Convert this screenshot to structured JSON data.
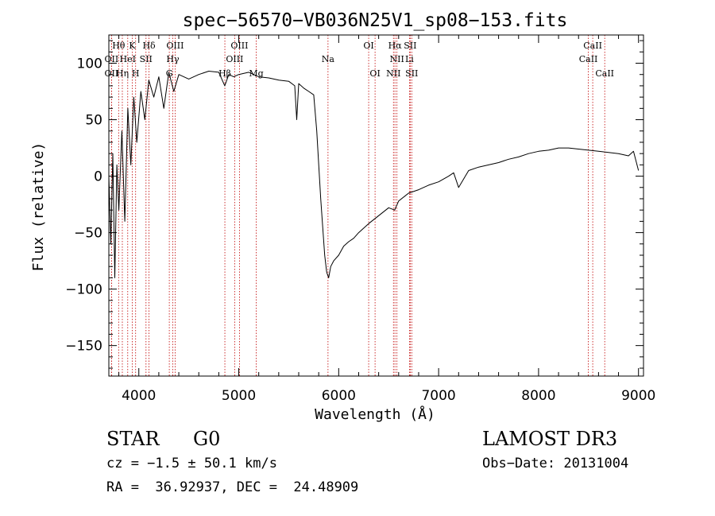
{
  "chart_data": {
    "type": "line",
    "title": "spec−56570−VB036N25V1_sp08−153.fits",
    "xlabel": "Wavelength (Å)",
    "ylabel": "Flux (relative)",
    "xlim": [
      3700,
      9050
    ],
    "ylim": [
      -177,
      125
    ],
    "xticks": [
      4000,
      5000,
      6000,
      7000,
      8000,
      9000
    ],
    "xtick_labels": [
      "4000",
      "5000",
      "6000",
      "7000",
      "8000",
      "9000"
    ],
    "yticks": [
      100,
      50,
      0,
      -50,
      -100,
      -150
    ],
    "ytick_labels": [
      "100",
      "50",
      "0",
      "−50",
      "−100",
      "−150"
    ],
    "series": [
      {
        "name": "spectrum",
        "x": [
          3700,
          3720,
          3740,
          3760,
          3780,
          3800,
          3830,
          3860,
          3890,
          3920,
          3950,
          3980,
          4020,
          4060,
          4100,
          4150,
          4200,
          4250,
          4300,
          4350,
          4400,
          4450,
          4500,
          4600,
          4700,
          4800,
          4860,
          4900,
          4950,
          5000,
          5100,
          5200,
          5300,
          5400,
          5500,
          5560,
          5580,
          5600,
          5650,
          5700,
          5750,
          5780,
          5800,
          5820,
          5840,
          5860,
          5880,
          5900,
          5920,
          5950,
          6000,
          6050,
          6100,
          6150,
          6200,
          6300,
          6400,
          6500,
          6560,
          6600,
          6700,
          6800,
          6900,
          7000,
          7100,
          7150,
          7200,
          7300,
          7400,
          7500,
          7600,
          7700,
          7800,
          7900,
          8000,
          8100,
          8200,
          8300,
          8400,
          8500,
          8600,
          8700,
          8800,
          8900,
          8950,
          9000
        ],
        "y": [
          0,
          -60,
          20,
          -90,
          10,
          -30,
          40,
          -40,
          60,
          10,
          70,
          30,
          75,
          50,
          85,
          70,
          88,
          60,
          92,
          75,
          90,
          88,
          86,
          90,
          93,
          92,
          80,
          90,
          88,
          90,
          92,
          88,
          87,
          85,
          84,
          80,
          50,
          82,
          78,
          75,
          72,
          40,
          10,
          -20,
          -45,
          -70,
          -85,
          -90,
          -80,
          -75,
          -70,
          -62,
          -58,
          -55,
          -50,
          -42,
          -35,
          -28,
          -30,
          -22,
          -15,
          -12,
          -8,
          -5,
          0,
          3,
          -10,
          5,
          8,
          10,
          12,
          15,
          17,
          20,
          22,
          23,
          25,
          25,
          24,
          23,
          22,
          21,
          20,
          18,
          22,
          5
        ]
      }
    ],
    "emission_lines": [
      {
        "label": "Hθ",
        "wavelength": 3798,
        "row": 1
      },
      {
        "label": "K",
        "wavelength": 3934,
        "row": 1
      },
      {
        "label": "Hδ",
        "wavelength": 4102,
        "row": 1
      },
      {
        "label": "OIII",
        "wavelength": 4363,
        "row": 1
      },
      {
        "label": "OIII",
        "wavelength": 5007,
        "row": 1
      },
      {
        "label": "OI",
        "wavelength": 6300,
        "row": 1
      },
      {
        "label": "Hα",
        "wavelength": 6563,
        "row": 1
      },
      {
        "label": "SII",
        "wavelength": 6716,
        "row": 1
      },
      {
        "label": "CaII",
        "wavelength": 8542,
        "row": 1
      },
      {
        "label": "OII",
        "wavelength": 3727,
        "row": 2
      },
      {
        "label": "HeI",
        "wavelength": 3889,
        "row": 2
      },
      {
        "label": "SII",
        "wavelength": 4072,
        "row": 2
      },
      {
        "label": "Hγ",
        "wavelength": 4340,
        "row": 2
      },
      {
        "label": "OIII",
        "wavelength": 4959,
        "row": 2
      },
      {
        "label": "Na",
        "wavelength": 5893,
        "row": 2
      },
      {
        "label": "NII",
        "wavelength": 6583,
        "row": 2
      },
      {
        "label": "Li",
        "wavelength": 6708,
        "row": 2
      },
      {
        "label": "CaII",
        "wavelength": 8498,
        "row": 2
      },
      {
        "label": "OII",
        "wavelength": 3727,
        "row": 3
      },
      {
        "label": "Hη",
        "wavelength": 3835,
        "row": 3
      },
      {
        "label": "H",
        "wavelength": 3968,
        "row": 3
      },
      {
        "label": "G",
        "wavelength": 4305,
        "row": 3
      },
      {
        "label": "Hβ",
        "wavelength": 4861,
        "row": 3
      },
      {
        "label": "Mg",
        "wavelength": 5175,
        "row": 3
      },
      {
        "label": "OI",
        "wavelength": 6364,
        "row": 3
      },
      {
        "label": "NII",
        "wavelength": 6548,
        "row": 3
      },
      {
        "label": "SII",
        "wavelength": 6731,
        "row": 3
      },
      {
        "label": "CaII",
        "wavelength": 8662,
        "row": 3
      }
    ],
    "line_color": "#c00000"
  },
  "info": {
    "class": "STAR",
    "subclass": "G0",
    "survey": "LAMOST DR3",
    "cz": "cz = −1.5 ± 50.1 km/s",
    "obsdate": "Obs−Date: 20131004",
    "coords": "RA =  36.92937, DEC =  24.48909"
  }
}
